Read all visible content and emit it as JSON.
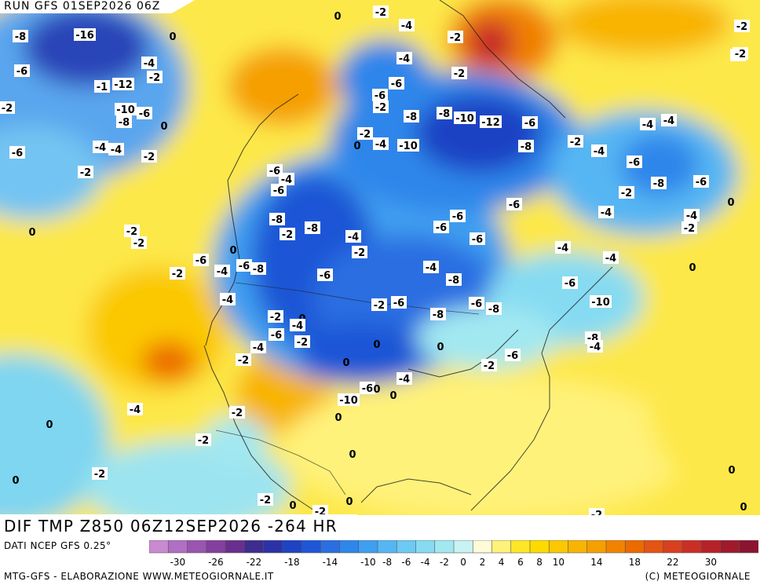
{
  "header": {
    "run": "RUN GFS 01SEP2026 06Z"
  },
  "title": "DIF TMP Z850 06Z12SEP2026 -264 HR",
  "footer": {
    "source": "DATI NCEP GFS 0.25°",
    "credit_left": "MTG-GFS - ELABORAZIONE WWW.METEOGIORNALE.IT",
    "credit_right": "(C) METEOGIORNALE"
  },
  "scale": {
    "colors": [
      "#c98ad0",
      "#b06fc2",
      "#9a55b0",
      "#83409e",
      "#6a2f8e",
      "#3e2d8f",
      "#2c32a6",
      "#1f43c4",
      "#1f56d6",
      "#2a6ee2",
      "#2f86ea",
      "#3f9ff0",
      "#56b6f3",
      "#6ccaf4",
      "#86dbf2",
      "#a2e8f1",
      "#c8f2f4",
      "#fffbd6",
      "#fff27a",
      "#ffe728",
      "#fdda00",
      "#fbc800",
      "#f8b400",
      "#f59f00",
      "#f28300",
      "#ec6a00",
      "#e45414",
      "#d8401f",
      "#ca2f26",
      "#b7222a",
      "#a11a2c",
      "#8a1530"
    ],
    "ticks": [
      "-30",
      "-26",
      "-22",
      "-18",
      "-14",
      "-10",
      "-8",
      "-6",
      "-4",
      "-2",
      "0",
      "2",
      "4",
      "6",
      "8",
      "10",
      "14",
      "18",
      "22",
      "30"
    ]
  },
  "map_labels": [
    "-8",
    "-16",
    "0",
    "-4",
    "-2",
    "-6",
    "0",
    "-2",
    "-4",
    "-2",
    "-2",
    "-2",
    "-2",
    "-2",
    "-6",
    "-4",
    "-1",
    "-12",
    "-2",
    "-6",
    "-4",
    "-2",
    "-10",
    "-6",
    "-8",
    "0",
    "-8",
    "-8",
    "-10",
    "-12",
    "-6",
    "-4",
    "-2",
    "0",
    "-4",
    "-4",
    "-4",
    "-10",
    "-8",
    "-2",
    "-4",
    "-6",
    "-2",
    "-2",
    "-6",
    "-8",
    "-6",
    "-6",
    "-6",
    "-4",
    "-2",
    "0",
    "-4",
    "-6",
    "-8",
    "-8",
    "-6",
    "-4",
    "-6",
    "-2",
    "-2",
    "0",
    "-2",
    "-6",
    "-2",
    "-4",
    "-2",
    "0",
    "-4",
    "-6",
    "-4",
    "-6",
    "-8",
    "-2",
    "0",
    "-4",
    "-6",
    "-4",
    "-8",
    "-6",
    "-4",
    "-2",
    "-6",
    "-6",
    "-8",
    "-10",
    "-8",
    "0",
    "-2",
    "-4",
    "-6",
    "-2",
    "0",
    "-4",
    "0",
    "-8",
    "-4",
    "-2",
    "0",
    "-2",
    "-6",
    "-4",
    "-6",
    "0",
    "-10",
    "0",
    "-4",
    "-2",
    "0",
    "0",
    "-2",
    "0",
    "0",
    "-2",
    "-2",
    "0",
    "0",
    "-2",
    "-2",
    "0",
    "0"
  ]
}
